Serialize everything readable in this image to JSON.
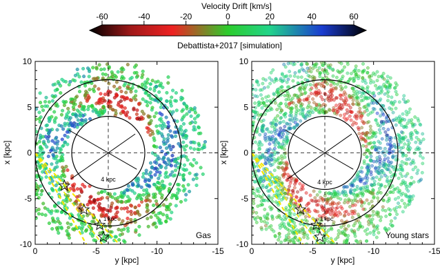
{
  "colorbar": {
    "title": "Velocity Drift  [km/s]",
    "ticks": [
      "-60",
      "-40",
      "-20",
      "0",
      "20",
      "40",
      "60"
    ],
    "range": [
      -60,
      60
    ],
    "colors": [
      "#000000",
      "#c81e1e",
      "#ee2222",
      "#2ccc2c",
      "#22dd88",
      "#1a3cd0",
      "#000000"
    ]
  },
  "subtitle": "Debattista+2017 [simulation]",
  "chart_data": [
    {
      "type": "scatter",
      "panel_label": "Gas",
      "xlabel": "y [kpc]",
      "ylabel": "x [kpc]",
      "xlim": [
        0,
        -15
      ],
      "ylim": [
        -10,
        10
      ],
      "xticks": [
        "0",
        "-5",
        "-10",
        "-15"
      ],
      "yticks": [
        "10",
        "5",
        "0",
        "-5",
        "-10"
      ],
      "center": [
        -6,
        0
      ],
      "outer_circle_radius_kpc": 6,
      "inner_circle_radius_kpc": 3,
      "circle_label": "4 kpc",
      "wedge_label": "1 kpc",
      "color_scale": "velocity_drift",
      "star_markers": [
        {
          "y": -2.4,
          "x": -3.6
        },
        {
          "y": -4.0,
          "x": -6.2
        },
        {
          "y": -5.3,
          "x": -7.9
        },
        {
          "y": -5.6,
          "x": -9.2
        }
      ]
    },
    {
      "type": "scatter",
      "panel_label": "Young stars",
      "xlabel": "y [kpc]",
      "ylabel": "x [kpc]",
      "xlim": [
        0,
        -15
      ],
      "ylim": [
        -10,
        10
      ],
      "xticks": [
        "0",
        "-5",
        "-10",
        "-15"
      ],
      "yticks": [
        "10",
        "5",
        "0",
        "-5",
        "-10"
      ],
      "center": [
        -6,
        0
      ],
      "outer_circle_radius_kpc": 6,
      "inner_circle_radius_kpc": 3,
      "circle_label": "4 kpc",
      "wedge_label": "1 kpc",
      "color_scale": "velocity_drift",
      "star_markers": [
        {
          "y": -4.0,
          "x": -6.2
        },
        {
          "y": -5.3,
          "x": -7.9
        },
        {
          "y": -5.6,
          "x": -9.2
        }
      ]
    }
  ]
}
